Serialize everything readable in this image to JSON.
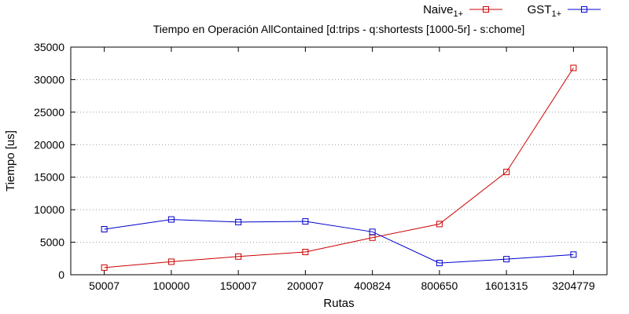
{
  "chart_data": {
    "type": "line",
    "title": "Tiempo en Operación AllContained [d:trips - q:shortests [1000-5r] - s:chome]",
    "xlabel": "Rutas",
    "ylabel": "Tiempo [us]",
    "categories": [
      "50007",
      "100000",
      "150007",
      "200007",
      "400824",
      "800650",
      "1601315",
      "3204779"
    ],
    "ylim": [
      0,
      35000
    ],
    "yticks": [
      "0",
      "5000",
      "10000",
      "15000",
      "20000",
      "25000",
      "30000",
      "35000"
    ],
    "grid": "horizontal dotted",
    "legend_position": "top-right",
    "series": [
      {
        "name": "Naive",
        "name_sub": "1+",
        "color": "#cc0000",
        "marker": "square",
        "values": [
          1100,
          2000,
          2800,
          3500,
          5700,
          7800,
          15800,
          31800
        ]
      },
      {
        "name": "GST",
        "name_sub": "1+",
        "color": "#0000cc",
        "marker": "square",
        "values": [
          7000,
          8500,
          8100,
          8200,
          6600,
          1800,
          2400,
          3100
        ]
      }
    ]
  }
}
